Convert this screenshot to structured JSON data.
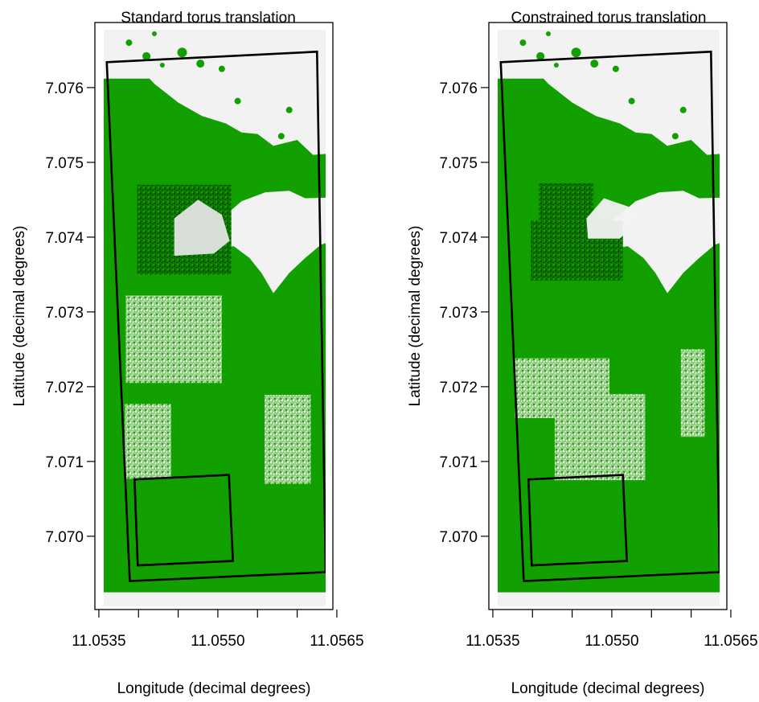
{
  "chart_data": [
    {
      "type": "map",
      "title": "Standard torus translation",
      "xlabel": "Longitude (decimal degrees)",
      "ylabel": "Latitude (decimal degrees)",
      "xlim": [
        11.05345,
        11.05645
      ],
      "ylim": [
        7.06902,
        7.07687
      ],
      "x_ticks": [
        11.0535,
        11.054,
        11.0545,
        11.055,
        11.0555,
        11.056,
        11.0565
      ],
      "x_tick_labels": [
        "11.0535",
        "",
        "",
        "11.0550",
        "",
        "",
        "11.0565"
      ],
      "y_ticks": [
        7.07,
        7.071,
        7.072,
        7.073,
        7.074,
        7.075,
        7.076
      ],
      "y_tick_labels": [
        "7.070",
        "7.071",
        "7.072",
        "7.073",
        "7.074",
        "7.075",
        "7.076"
      ],
      "colors": {
        "forest": "#12a000",
        "non_forest": "#f2f2f2",
        "frame": "#000000"
      },
      "plot_boundary": [
        [
          11.0536,
          7.07634
        ],
        [
          11.05625,
          7.07648
        ],
        [
          11.05636,
          7.06952
        ],
        [
          11.05389,
          7.0694
        ]
      ],
      "plot_focal": [
        [
          11.05395,
          7.07076
        ],
        [
          11.05514,
          7.07082
        ],
        [
          11.05519,
          7.06967
        ],
        [
          11.05399,
          7.06961
        ]
      ],
      "translated_patches": [
        {
          "x": [
            11.05398,
            11.05517
          ],
          "y": [
            7.0735,
            7.0747
          ],
          "style": "dark"
        },
        {
          "x": [
            11.05384,
            11.05505
          ],
          "y": [
            7.07205,
            7.07322
          ],
          "style": "light"
        },
        {
          "x": [
            11.05383,
            11.05441
          ],
          "y": [
            7.07077,
            7.07177
          ],
          "style": "light"
        },
        {
          "x": [
            11.05559,
            11.05617
          ],
          "y": [
            7.0707,
            7.07189
          ],
          "style": "light"
        }
      ]
    },
    {
      "type": "map",
      "title": "Constrained torus translation",
      "xlabel": "Longitude (decimal degrees)",
      "ylabel": "Latitude (decimal degrees)",
      "xlim": [
        11.05345,
        11.05645
      ],
      "ylim": [
        7.06902,
        7.07687
      ],
      "x_ticks": [
        11.0535,
        11.054,
        11.0545,
        11.055,
        11.0555,
        11.056,
        11.0565
      ],
      "x_tick_labels": [
        "11.0535",
        "",
        "",
        "11.0550",
        "",
        "",
        "11.0565"
      ],
      "y_ticks": [
        7.07,
        7.071,
        7.072,
        7.073,
        7.074,
        7.075,
        7.076
      ],
      "y_tick_labels": [
        "7.070",
        "7.071",
        "7.072",
        "7.073",
        "7.074",
        "7.075",
        "7.076"
      ],
      "colors": {
        "forest": "#12a000",
        "non_forest": "#f2f2f2",
        "frame": "#000000"
      },
      "plot_boundary": [
        [
          11.0536,
          7.07634
        ],
        [
          11.05625,
          7.07648
        ],
        [
          11.05636,
          7.06952
        ],
        [
          11.05389,
          7.0694
        ]
      ],
      "plot_focal": [
        [
          11.05395,
          7.07076
        ],
        [
          11.05514,
          7.07082
        ],
        [
          11.05519,
          7.06967
        ],
        [
          11.05399,
          7.06961
        ]
      ],
      "translated_patches": [
        {
          "x": [
            11.05408,
            11.05477
          ],
          "y": [
            7.07422,
            7.07472
          ],
          "style": "dark"
        },
        {
          "x": [
            11.05398,
            11.05514
          ],
          "y": [
            7.07342,
            7.07422
          ],
          "style": "dark"
        },
        {
          "x": [
            11.05378,
            11.05497
          ],
          "y": [
            7.07158,
            7.07238
          ],
          "style": "light"
        },
        {
          "x": [
            11.05428,
            11.05542
          ],
          "y": [
            7.07075,
            7.0719
          ],
          "style": "light"
        },
        {
          "x": [
            11.05587,
            11.05617
          ],
          "y": [
            7.07133,
            7.0725
          ],
          "style": "light"
        }
      ]
    }
  ]
}
